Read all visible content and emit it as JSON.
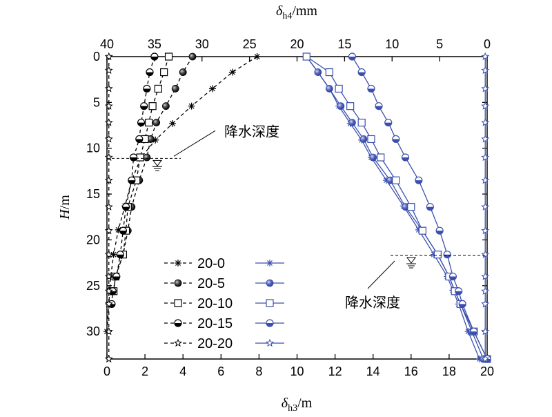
{
  "chart_data": {
    "type": "line",
    "xlabel_bottom": {
      "sym": "δ",
      "sub": "h3",
      "unit": "/m"
    },
    "xlabel_top": {
      "sym": "δ",
      "sub": "h4",
      "unit": "/mm"
    },
    "ylabel": {
      "sym": "H",
      "unit": "/m"
    },
    "xlim_bottom": [
      0,
      20
    ],
    "xlim_top": [
      40,
      0
    ],
    "ylim": [
      33,
      0
    ],
    "y_inverted": true,
    "x_bottom_ticks": [
      "0",
      "2",
      "4",
      "6",
      "8",
      "10",
      "12",
      "14",
      "16",
      "18",
      "20"
    ],
    "x_top_ticks": [
      "40",
      "35",
      "30",
      "25",
      "20",
      "15",
      "10",
      "5",
      "0"
    ],
    "y_ticks": [
      "0",
      "5",
      "10",
      "15",
      "20",
      "25",
      "30"
    ],
    "grid": false,
    "legend_position": "bottom-left",
    "annotations": [
      {
        "text": "降水深度",
        "depth": 11.1,
        "group": "top"
      },
      {
        "text": "降水深度",
        "depth": 21.7,
        "group": "bottom"
      }
    ],
    "legend": [
      {
        "label": "20-0",
        "marker": "asterisk"
      },
      {
        "label": "20-5",
        "marker": "circle-shaded"
      },
      {
        "label": "20-10",
        "marker": "square-open"
      },
      {
        "label": "20-15",
        "marker": "circle-half"
      },
      {
        "label": "20-20",
        "marker": "star-open"
      }
    ],
    "colors": {
      "top_group": "#000000",
      "bottom_group": "#3a4fae"
    },
    "series_top": [
      {
        "label": "20-0",
        "marker": "asterisk",
        "x": [
          24.2,
          26.8,
          28.9,
          31.1,
          33.1,
          34.9,
          36.4,
          37.4,
          38.1,
          38.8,
          39.3,
          39.6,
          39.7,
          39.8,
          40.0
        ],
        "y": [
          0,
          1.7,
          3.5,
          5.4,
          7.3,
          9.1,
          11.0,
          13.5,
          16.3,
          18.9,
          21.6,
          24.0,
          25.5,
          27.0,
          30.0
        ]
      },
      {
        "label": "20-5",
        "marker": "circle-shaded",
        "x": [
          31.0,
          32.0,
          32.8,
          33.8,
          34.8,
          35.4,
          35.8,
          36.6,
          37.4,
          37.8,
          38.3,
          39.1,
          39.3
        ],
        "y": [
          0,
          1.7,
          3.5,
          5.4,
          7.2,
          9.0,
          11.0,
          13.5,
          16.4,
          19.0,
          21.6,
          24.0,
          25.6
        ]
      },
      {
        "label": "20-10",
        "marker": "square-open",
        "x": [
          33.5,
          34.0,
          34.6,
          35.2,
          35.6,
          36.0,
          36.5,
          36.9,
          37.8,
          38.0,
          38.3,
          39.1,
          39.3
        ],
        "y": [
          0,
          1.7,
          3.5,
          5.4,
          7.2,
          9.0,
          11.0,
          13.5,
          16.4,
          19.0,
          21.6,
          24.0,
          25.6
        ]
      },
      {
        "label": "20-15",
        "marker": "circle-half",
        "x": [
          35.0,
          35.5,
          35.8,
          36.1,
          36.4,
          36.6,
          37.2,
          37.4,
          38.0,
          38.3,
          38.6,
          39.0,
          39.4,
          39.5
        ],
        "y": [
          0,
          1.7,
          3.5,
          5.4,
          7.2,
          9.0,
          11.0,
          13.5,
          16.4,
          19.0,
          21.6,
          24.0,
          25.6,
          27.0
        ]
      },
      {
        "label": "20-20",
        "marker": "star-open",
        "x": [
          39.8,
          39.8,
          39.8,
          39.8,
          39.8,
          39.8,
          39.8,
          39.8,
          39.8,
          39.8,
          39.8,
          39.8,
          39.8,
          39.8,
          39.8,
          39.8
        ],
        "y": [
          0,
          1.5,
          3.5,
          5.4,
          7.2,
          9.0,
          11.0,
          13.5,
          16.4,
          19.0,
          21.6,
          24.0,
          25.6,
          27.0,
          30.0,
          33.0
        ]
      }
    ],
    "series_bottom": [
      {
        "label": "20-0",
        "marker": "asterisk",
        "x": [
          10.5,
          11.1,
          11.7,
          12.2,
          12.8,
          13.4,
          13.9,
          14.7,
          15.6,
          16.4,
          17.2,
          17.9,
          18.2,
          18.5,
          19.0,
          19.6
        ],
        "y": [
          0,
          1.7,
          3.5,
          5.4,
          7.3,
          9.1,
          11.0,
          13.5,
          16.3,
          18.9,
          21.6,
          24.0,
          25.5,
          27.0,
          30.0,
          33.0
        ]
      },
      {
        "label": "20-5",
        "marker": "circle-shaded",
        "x": [
          10.5,
          11.1,
          11.7,
          12.3,
          12.9,
          13.5,
          14.0,
          14.9,
          15.7,
          16.6,
          17.4,
          18.0,
          18.3,
          18.6,
          19.2,
          19.8
        ],
        "y": [
          0,
          1.7,
          3.5,
          5.4,
          7.2,
          9.0,
          11.0,
          13.5,
          16.4,
          19.0,
          21.6,
          24.0,
          25.6,
          27.0,
          30.0,
          33.0
        ]
      },
      {
        "label": "20-10",
        "marker": "square-open",
        "x": [
          10.5,
          11.7,
          12.2,
          12.8,
          13.4,
          13.9,
          14.4,
          15.2,
          16.0,
          16.6,
          17.4,
          18.0,
          18.3,
          18.6,
          19.3,
          20.0
        ],
        "y": [
          0,
          1.7,
          3.5,
          5.4,
          7.2,
          9.0,
          11.0,
          13.5,
          16.4,
          19.0,
          21.6,
          24.0,
          25.6,
          27.0,
          30.0,
          33.0
        ]
      },
      {
        "label": "20-15",
        "marker": "circle-half",
        "x": [
          12.9,
          13.4,
          13.9,
          14.3,
          14.8,
          15.2,
          15.7,
          16.4,
          17.0,
          17.5,
          17.9,
          18.2,
          18.5,
          18.7,
          19.3,
          20.0
        ],
        "y": [
          0,
          1.7,
          3.5,
          5.4,
          7.2,
          9.0,
          11.0,
          13.5,
          16.4,
          19.0,
          21.6,
          24.0,
          25.6,
          27.0,
          30.0,
          33.0
        ]
      },
      {
        "label": "20-20",
        "marker": "star-open",
        "x": [
          19.9,
          19.9,
          19.9,
          19.9,
          19.9,
          19.9,
          19.9,
          19.9,
          19.9,
          19.9,
          19.9,
          19.9,
          19.9,
          19.9,
          19.9,
          19.9
        ],
        "y": [
          0,
          1.5,
          3.5,
          5.4,
          7.2,
          9.0,
          11.0,
          13.5,
          16.4,
          19.0,
          21.6,
          24.0,
          25.6,
          27.0,
          30.0,
          33.0
        ]
      }
    ]
  }
}
